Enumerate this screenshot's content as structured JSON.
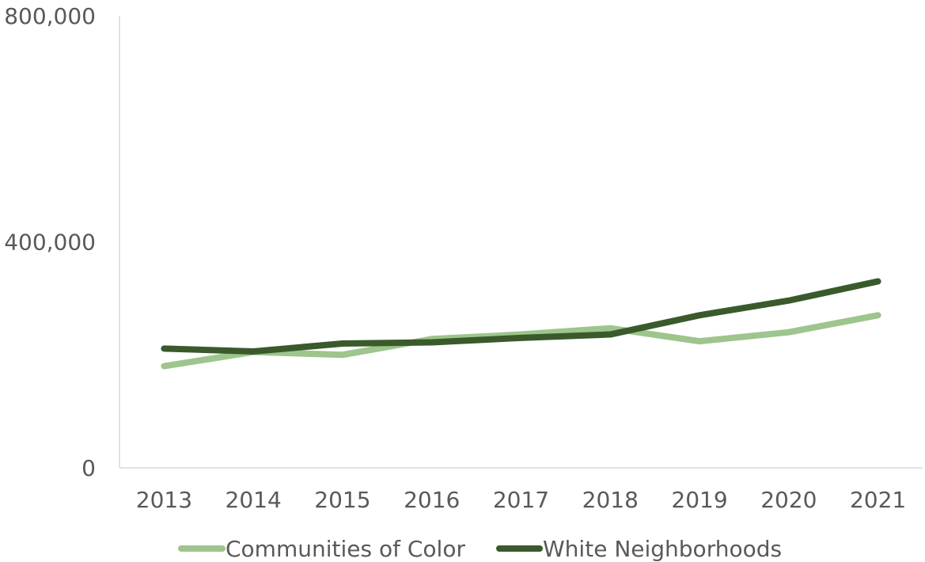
{
  "chart_data": {
    "type": "line",
    "title": "",
    "xlabel": "",
    "ylabel": "",
    "categories": [
      "2013",
      "2014",
      "2015",
      "2016",
      "2017",
      "2018",
      "2019",
      "2020",
      "2021"
    ],
    "y_ticks": [
      "0",
      "400,000",
      "800,000"
    ],
    "ylim": [
      0,
      800000
    ],
    "grid": false,
    "legend_position": "bottom",
    "series": [
      {
        "name": "Communities of Color",
        "color": "#9dc58d",
        "values": [
          180000,
          205000,
          200000,
          228000,
          236000,
          247000,
          224000,
          240000,
          270000
        ]
      },
      {
        "name": "White Neighborhoods",
        "color": "#3a5a2c",
        "values": [
          211000,
          206000,
          220000,
          222000,
          230000,
          236000,
          270000,
          296000,
          330000
        ]
      }
    ]
  }
}
